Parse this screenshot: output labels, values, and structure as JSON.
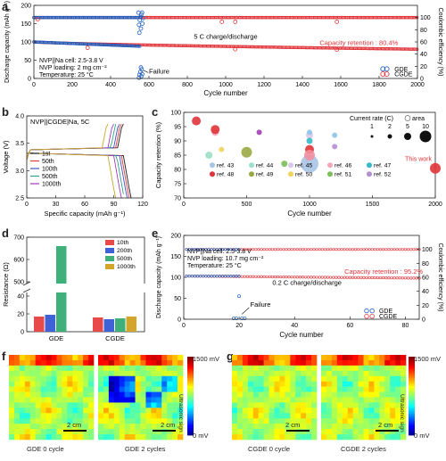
{
  "panel_letters": [
    "a",
    "b",
    "c",
    "d",
    "e",
    "f",
    "g"
  ],
  "chart_data": [
    {
      "id": "a",
      "type": "scatter",
      "xlabel": "Cycle number",
      "ylabel": "Discharge capacity (mAh g⁻¹)",
      "y2label": "Coulombic efficiency (%)",
      "xlim": [
        0,
        2000
      ],
      "ylim": [
        0,
        200
      ],
      "y2lim": [
        0,
        120
      ],
      "xticks": [
        0,
        200,
        400,
        600,
        800,
        1000,
        1200,
        1400,
        1600,
        1800,
        2000
      ],
      "yticks": [
        0,
        50,
        100,
        150,
        200
      ],
      "y2ticks": [
        0,
        20,
        40,
        60,
        80,
        100
      ],
      "series": [
        {
          "name": "GDE",
          "color": "#1f5fbf",
          "capacity_start": 100,
          "capacity_end": 88,
          "end_cycle": 555,
          "ce": 100
        },
        {
          "name": "CGDE",
          "color": "#e0343a",
          "capacity_start": 100,
          "capacity_end": 80,
          "end_cycle": 2000,
          "ce": 100
        }
      ],
      "outliers_cgde_ce": [
        [
          20,
          97
        ],
        [
          980,
          93
        ],
        [
          1050,
          93
        ],
        [
          1580,
          93
        ]
      ],
      "outliers_cgde_cap": [
        [
          280,
          84
        ],
        [
          1050,
          80
        ],
        [
          1580,
          79
        ]
      ],
      "failure_points_ce": [
        [
          548,
          88
        ],
        [
          552,
          96
        ],
        [
          556,
          101
        ],
        [
          560,
          105
        ],
        [
          564,
          108
        ],
        [
          550,
          75
        ],
        [
          558,
          82
        ],
        [
          566,
          90
        ],
        [
          570,
          99
        ],
        [
          545,
          108
        ]
      ],
      "failure_points_cap": [
        [
          550,
          10
        ],
        [
          555,
          18
        ],
        [
          560,
          6
        ],
        [
          562,
          25
        ],
        [
          548,
          2
        ],
        [
          565,
          12
        ],
        [
          558,
          30
        ]
      ],
      "annotations": {
        "cell": "NVP||Na cell: 2.5-3.8 V",
        "loading": "NVP loading: 2 mg cm⁻²",
        "temp": "Temperature: 25 °C",
        "rate": "5 C charge/discharge",
        "retention": "Capacity retention : 80.4%",
        "failure": "Failure"
      }
    },
    {
      "id": "b",
      "type": "line",
      "title": "NVP||CGDE|Na, 5C",
      "xlabel": "Specific capacity (mAh g⁻¹)",
      "ylabel": "Voltage (V)",
      "xlim": [
        0,
        120
      ],
      "ylim": [
        2.5,
        4.0
      ],
      "xticks": [
        0,
        30,
        60,
        90,
        120
      ],
      "yticks": [
        2.5,
        3.0,
        3.5,
        4.0
      ],
      "series": [
        {
          "name": "1st",
          "color": "#1c1c1c",
          "cap": 100
        },
        {
          "name": "50th",
          "color": "#e23b3b",
          "cap": 98
        },
        {
          "name": "100th",
          "color": "#3b52c4",
          "cap": 96
        },
        {
          "name": "500th",
          "color": "#2aa48c",
          "cap": 93
        },
        {
          "name": "1000th",
          "color": "#a23cb4",
          "cap": 90
        },
        {
          "name": "",
          "color": "#c9a62b",
          "cap": 84
        }
      ]
    },
    {
      "id": "c",
      "type": "scatter",
      "xlabel": "Cycle number",
      "ylabel": "Capacity retention (%)",
      "xlim": [
        0,
        2000
      ],
      "ylim": [
        70,
        100
      ],
      "xticks": [
        0,
        500,
        1000,
        1500,
        2000
      ],
      "yticks": [
        70,
        75,
        80,
        85,
        90,
        95,
        100
      ],
      "legend_title": "Current rate (C)",
      "legend_area": "area",
      "legend_sizes": [
        "1",
        "2",
        "5",
        "10"
      ],
      "points": [
        {
          "ref": "ref. 43",
          "x": 1000,
          "y": 82,
          "r": 10,
          "color": "#a8c4e6"
        },
        {
          "ref": "ref. 44",
          "x": 200,
          "y": 85,
          "r": 4,
          "color": "#9be0c8"
        },
        {
          "ref": "ref. 45",
          "x": 1000,
          "y": 92,
          "r": 4,
          "color": "#d9c8ea"
        },
        {
          "ref": "ref. 46",
          "x": 250,
          "y": 93,
          "r": 4,
          "color": "#f3a6b8"
        },
        {
          "ref": "ref. 47",
          "x": 1000,
          "y": 90,
          "r": 3.5,
          "color": "#35b9c6"
        },
        {
          "ref": "ref. 48",
          "x": 100,
          "y": 97,
          "r": 5,
          "color": "#e0343a"
        },
        {
          "ref": "ref. 49",
          "x": 500,
          "y": 86,
          "r": 6,
          "color": "#9aa843"
        },
        {
          "ref": "ref. 50",
          "x": 300,
          "y": 87,
          "r": 3,
          "color": "#f2d35c"
        },
        {
          "ref": "ref. 51",
          "x": 800,
          "y": 82,
          "r": 3.5,
          "color": "#7cbe5a"
        },
        {
          "ref": "ref. 52",
          "x": 1200,
          "y": 88,
          "r": 3,
          "color": "#b58fd0"
        },
        {
          "ref": "",
          "x": 250,
          "y": 94,
          "r": 5,
          "color": "#e0343a"
        },
        {
          "ref": "",
          "x": 1000,
          "y": 87,
          "r": 5,
          "color": "#e0343a"
        },
        {
          "ref": "",
          "x": 1000,
          "y": 85,
          "r": 6,
          "color": "#f28fa0"
        },
        {
          "ref": "",
          "x": 1000,
          "y": 93,
          "r": 3,
          "color": "#8fc4e8"
        },
        {
          "ref": "",
          "x": 600,
          "y": 93,
          "r": 3,
          "color": "#a23cb4"
        },
        {
          "ref": "",
          "x": 1200,
          "y": 92,
          "r": 3,
          "color": "#8fc4e8"
        },
        {
          "ref": "This work",
          "x": 2000,
          "y": 80.4,
          "r": 6,
          "color": "#e0343a"
        }
      ]
    },
    {
      "id": "d",
      "type": "bar",
      "ylabel": "Resistance (Ω)",
      "categories": [
        "GDE",
        "CGDE"
      ],
      "series": [
        {
          "name": "10th",
          "color": "#e84a4a",
          "values": [
            17,
            16
          ]
        },
        {
          "name": "200th",
          "color": "#3f63d6",
          "values": [
            19,
            14
          ]
        },
        {
          "name": "500th",
          "color": "#3fb07a",
          "values": [
            660,
            15
          ]
        },
        {
          "name": "1000th",
          "color": "#d4a52b",
          "values": [
            null,
            17
          ]
        }
      ],
      "yticks_low": [
        0,
        20,
        40
      ],
      "yticks_high": [
        500,
        600,
        700
      ]
    },
    {
      "id": "e",
      "type": "scatter",
      "xlabel": "Cycle number",
      "ylabel": "Discharge capacity (mAh g⁻¹)",
      "y2label": "Coulombic efficiency (%)",
      "xlim": [
        0,
        85
      ],
      "ylim": [
        0,
        200
      ],
      "y2lim": [
        0,
        120
      ],
      "xticks": [
        0,
        20,
        40,
        60,
        80
      ],
      "yticks": [
        0,
        50,
        100,
        150,
        200
      ],
      "y2ticks": [
        0,
        20,
        40,
        60,
        80,
        100
      ],
      "series": [
        {
          "name": "GDE",
          "color": "#1f5fbf",
          "capacity": 103,
          "end_cycle": 20,
          "ce": 100
        },
        {
          "name": "CGDE",
          "color": "#e0343a",
          "capacity_start": 103,
          "capacity_end": 98,
          "end_cycle": 85,
          "ce": 100
        }
      ],
      "annotations": {
        "cell": "NVP||Na cell: 2.5-3.8 V",
        "loading": "NVP loading: 10.7 mg cm⁻²",
        "temp": "Temperature: 25 °C",
        "rate": "0.2 C charge/discharge",
        "retention": "Capacity retention : 95.2%",
        "failure": "Failure"
      }
    }
  ],
  "images_f": {
    "left_caption": "GDE 0 cycle",
    "right_caption": "GDE 2 cycles",
    "scale": "2 cm",
    "cbar_max": "1500 mV",
    "cbar_min": "0 mV",
    "cbar_label": "Ultrasonic sign"
  },
  "images_g": {
    "left_caption": "CGDE 0 cycle",
    "right_caption": "CGDE 2 cycles",
    "scale": "2 cm",
    "cbar_max": "1500 mV",
    "cbar_min": "0 mV",
    "cbar_label": "Ultrasonic sign"
  }
}
